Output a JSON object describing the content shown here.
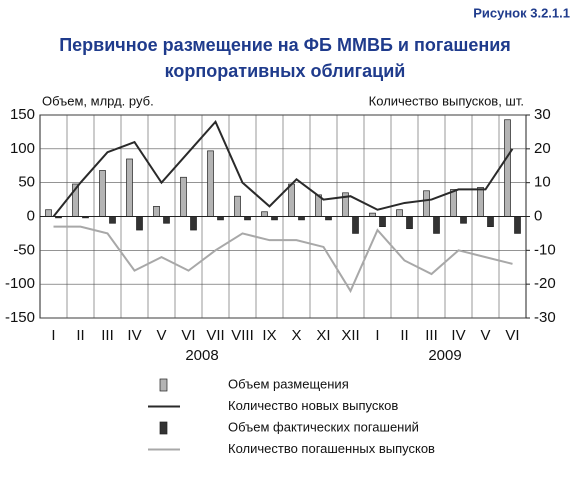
{
  "chart_data": {
    "type": "combo",
    "figure_label": "Рисунок 3.2.1.1",
    "title": [
      "Первичное размещение на ФБ ММВБ и погашения",
      "корпоративных облигаций"
    ],
    "y_label": "Объем, млрд. руб.",
    "y2_label": "Количество выпусков, шт.",
    "categories": [
      "I",
      "II",
      "III",
      "IV",
      "V",
      "VI",
      "VII",
      "VIII",
      "IX",
      "X",
      "XI",
      "XII",
      "I",
      "II",
      "III",
      "IV",
      "V",
      "VI"
    ],
    "years": [
      "2008",
      "2009"
    ],
    "ylim": [
      -150,
      150
    ],
    "yticks": [
      -150,
      -100,
      -50,
      0,
      50,
      100,
      150
    ],
    "y2lim": [
      -30,
      30
    ],
    "y2ticks": [
      -30,
      -20,
      -10,
      0,
      10,
      20,
      30
    ],
    "series": [
      {
        "name": "Объем размещения",
        "type": "bar",
        "color": "#b4b4b4",
        "values": [
          10,
          48,
          68,
          85,
          15,
          58,
          97,
          30,
          7,
          48,
          32,
          35,
          5,
          10,
          38,
          40,
          43,
          143
        ]
      },
      {
        "name": "Количество новых выпусков",
        "type": "line",
        "axis": "y2",
        "color": "#2a2a2a",
        "values": [
          0,
          10,
          19,
          22,
          10,
          19,
          28,
          10,
          3,
          11,
          5,
          6,
          2,
          4,
          5,
          8,
          8,
          20
        ]
      },
      {
        "name": "Объем фактических погашений",
        "type": "bar",
        "color": "#333333",
        "values": [
          -2,
          -2,
          -10,
          -20,
          -10,
          -20,
          -5,
          -5,
          -5,
          -5,
          -5,
          -25,
          -15,
          -18,
          -25,
          -10,
          -15,
          -25
        ]
      },
      {
        "name": "Количество погашенных выпусков",
        "type": "line",
        "axis": "y2",
        "color": "#a8a8a8",
        "values": [
          -3,
          -3,
          -5,
          -16,
          -12,
          -16,
          -10,
          -5,
          -7,
          -7,
          -9,
          -22,
          -4,
          -13,
          -17,
          -10,
          -12,
          -14
        ]
      }
    ]
  }
}
